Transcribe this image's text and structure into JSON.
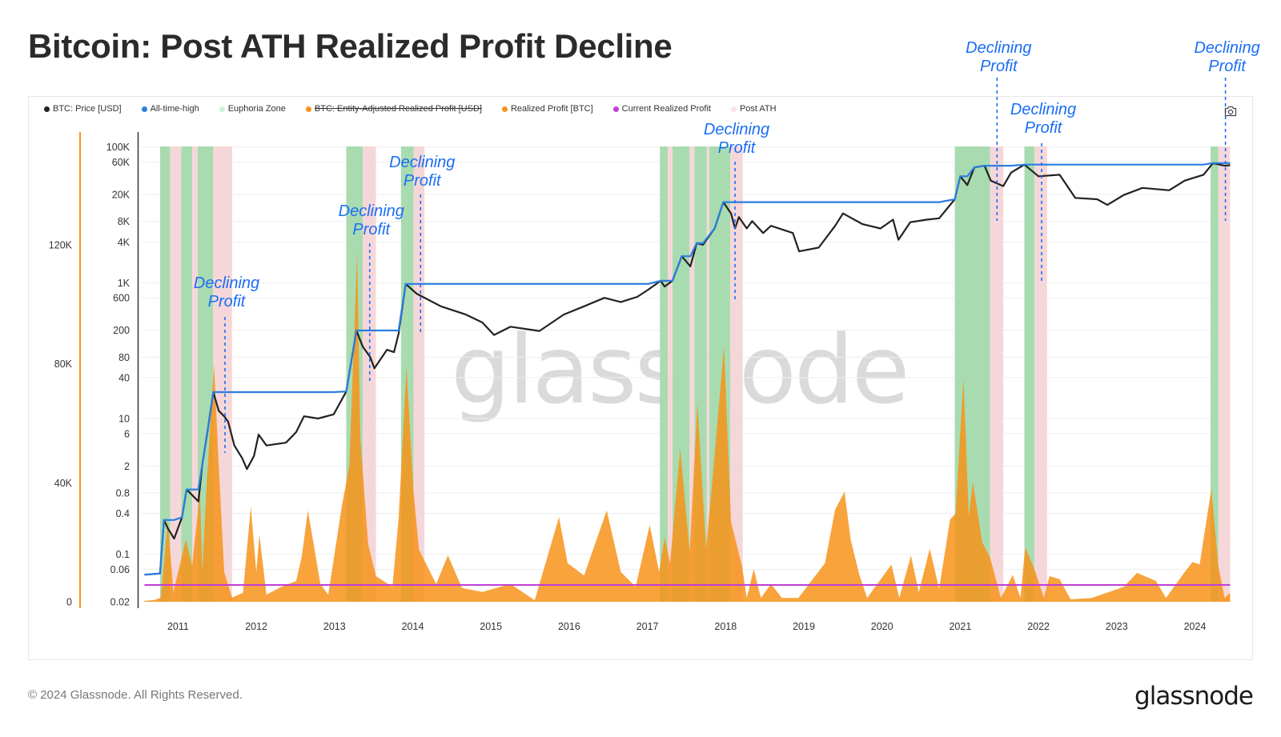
{
  "title": "Bitcoin: Post ATH Realized Profit Decline",
  "legend": [
    {
      "label": "BTC: Price [USD]",
      "color": "#222222",
      "strikethrough": false
    },
    {
      "label": "All-time-high",
      "color": "#2a7de1",
      "strikethrough": false
    },
    {
      "label": "Euphoria Zone",
      "color": "#c9f2d6",
      "strikethrough": false
    },
    {
      "label": "BTC: Entity-Adjusted Realized Profit [USD]",
      "color": "#f7931a",
      "strikethrough": true
    },
    {
      "label": "Realized Profit [BTC]",
      "color": "#f7931a",
      "strikethrough": false
    },
    {
      "label": "Current Realized Profit",
      "color": "#c23fd6",
      "strikethrough": false
    },
    {
      "label": "Post ATH",
      "color": "#fbe3e4",
      "strikethrough": false
    }
  ],
  "watermark": "glassnode",
  "footer": {
    "copyright": "© 2024 Glassnode. All Rights Reserved.",
    "logo": "glassnode"
  },
  "icons": {
    "screenshot": "camera-icon"
  },
  "chart_data": {
    "type": "line",
    "title": "Bitcoin: Post ATH Realized Profit Decline",
    "grid": true,
    "legend_position": "top-left",
    "x_range": [
      2010.57,
      2024.45
    ],
    "x_ticks": [
      "2011",
      "2012",
      "2013",
      "2014",
      "2015",
      "2016",
      "2017",
      "2018",
      "2019",
      "2020",
      "2021",
      "2022",
      "2023",
      "2024"
    ],
    "price_axis": {
      "scale": "log",
      "range": [
        0.02,
        100000
      ],
      "side": "left-inner",
      "ticks": [
        {
          "label": "100K",
          "value": 100000
        },
        {
          "label": "60K",
          "value": 60000
        },
        {
          "label": "20K",
          "value": 20000
        },
        {
          "label": "8K",
          "value": 8000
        },
        {
          "label": "4K",
          "value": 4000
        },
        {
          "label": "1K",
          "value": 1000
        },
        {
          "label": "600",
          "value": 600
        },
        {
          "label": "200",
          "value": 200
        },
        {
          "label": "80",
          "value": 80
        },
        {
          "label": "40",
          "value": 40
        },
        {
          "label": "10",
          "value": 10
        },
        {
          "label": "6",
          "value": 6
        },
        {
          "label": "2",
          "value": 2
        },
        {
          "label": "0.8",
          "value": 0.8
        },
        {
          "label": "0.4",
          "value": 0.4
        },
        {
          "label": "0.1",
          "value": 0.1
        },
        {
          "label": "0.06",
          "value": 0.06
        },
        {
          "label": "0.02",
          "value": 0.02
        }
      ]
    },
    "profit_axis": {
      "scale": "linear",
      "range": [
        0,
        153000
      ],
      "side": "left-outer",
      "ticks": [
        {
          "label": "0",
          "value": 0
        },
        {
          "label": "40K",
          "value": 40000
        },
        {
          "label": "80K",
          "value": 80000
        },
        {
          "label": "120K",
          "value": 120000
        }
      ]
    },
    "colors": {
      "price": "#222222",
      "ath": "#2a7de1",
      "euphoria": "#a9dbb1",
      "post_ath": "#f6d7d9",
      "profit": "#f7931a",
      "current_profit": "#c23fd6",
      "annotation": "#1a6ef5"
    },
    "series": [
      {
        "name": "BTC: Price [USD]",
        "points": [
          [
            2010.57,
            0.05
          ],
          [
            2010.77,
            0.052
          ],
          [
            2010.82,
            0.32
          ],
          [
            2010.87,
            0.24
          ],
          [
            2010.95,
            0.17
          ],
          [
            2011.05,
            0.35
          ],
          [
            2011.11,
            0.9
          ],
          [
            2011.26,
            0.6
          ],
          [
            2011.31,
            2.1
          ],
          [
            2011.38,
            6.8
          ],
          [
            2011.45,
            24.5
          ],
          [
            2011.52,
            13
          ],
          [
            2011.59,
            10.8
          ],
          [
            2011.64,
            9
          ],
          [
            2011.72,
            4
          ],
          [
            2011.82,
            2.6
          ],
          [
            2011.88,
            1.8
          ],
          [
            2011.97,
            2.8
          ],
          [
            2012.03,
            5.8
          ],
          [
            2012.13,
            4
          ],
          [
            2012.38,
            4.4
          ],
          [
            2012.51,
            6.3
          ],
          [
            2012.61,
            10.8
          ],
          [
            2012.79,
            10
          ],
          [
            2012.99,
            11.5
          ],
          [
            2013.15,
            25
          ],
          [
            2013.28,
            198
          ],
          [
            2013.36,
            115
          ],
          [
            2013.46,
            79
          ],
          [
            2013.51,
            55
          ],
          [
            2013.67,
            103
          ],
          [
            2013.76,
            95
          ],
          [
            2013.82,
            178
          ],
          [
            2013.91,
            960
          ],
          [
            2014.05,
            690
          ],
          [
            2014.36,
            450
          ],
          [
            2014.68,
            340
          ],
          [
            2014.89,
            260
          ],
          [
            2015.04,
            170
          ],
          [
            2015.25,
            225
          ],
          [
            2015.62,
            195
          ],
          [
            2015.93,
            340
          ],
          [
            2016.19,
            450
          ],
          [
            2016.45,
            600
          ],
          [
            2016.66,
            520
          ],
          [
            2016.87,
            620
          ],
          [
            2017.01,
            790
          ],
          [
            2017.17,
            1070
          ],
          [
            2017.22,
            880
          ],
          [
            2017.32,
            1070
          ],
          [
            2017.44,
            2460
          ],
          [
            2017.55,
            1740
          ],
          [
            2017.63,
            3830
          ],
          [
            2017.71,
            3640
          ],
          [
            2017.86,
            6300
          ],
          [
            2017.97,
            15400
          ],
          [
            2018.07,
            10500
          ],
          [
            2018.12,
            6300
          ],
          [
            2018.17,
            9300
          ],
          [
            2018.27,
            6300
          ],
          [
            2018.34,
            8100
          ],
          [
            2018.48,
            5400
          ],
          [
            2018.58,
            6900
          ],
          [
            2018.86,
            5400
          ],
          [
            2018.94,
            2900
          ],
          [
            2019.19,
            3300
          ],
          [
            2019.4,
            6900
          ],
          [
            2019.5,
            10500
          ],
          [
            2019.75,
            7300
          ],
          [
            2019.98,
            6300
          ],
          [
            2020.14,
            8500
          ],
          [
            2020.21,
            4300
          ],
          [
            2020.36,
            7800
          ],
          [
            2020.57,
            8500
          ],
          [
            2020.73,
            8900
          ],
          [
            2020.93,
            17000
          ],
          [
            2021.0,
            37000
          ],
          [
            2021.09,
            27500
          ],
          [
            2021.18,
            50000
          ],
          [
            2021.31,
            53000
          ],
          [
            2021.39,
            32000
          ],
          [
            2021.55,
            26500
          ],
          [
            2021.65,
            42000
          ],
          [
            2021.82,
            55000
          ],
          [
            2022.0,
            37000
          ],
          [
            2022.27,
            39000
          ],
          [
            2022.47,
            17800
          ],
          [
            2022.75,
            17000
          ],
          [
            2022.88,
            14000
          ],
          [
            2023.09,
            19600
          ],
          [
            2023.33,
            25000
          ],
          [
            2023.67,
            23000
          ],
          [
            2023.87,
            32000
          ],
          [
            2024.11,
            39000
          ],
          [
            2024.23,
            58000
          ],
          [
            2024.38,
            53000
          ],
          [
            2024.45,
            54000
          ]
        ]
      },
      {
        "name": "Realized Profit [BTC]",
        "points": [
          [
            2010.57,
            300
          ],
          [
            2010.7,
            600
          ],
          [
            2010.78,
            1400
          ],
          [
            2010.87,
            27400
          ],
          [
            2010.94,
            3200
          ],
          [
            2011.1,
            21000
          ],
          [
            2011.18,
            12000
          ],
          [
            2011.28,
            37000
          ],
          [
            2011.31,
            10000
          ],
          [
            2011.36,
            37000
          ],
          [
            2011.46,
            80000
          ],
          [
            2011.52,
            46000
          ],
          [
            2011.59,
            10000
          ],
          [
            2011.69,
            1400
          ],
          [
            2011.83,
            3000
          ],
          [
            2011.93,
            32000
          ],
          [
            2012.0,
            10000
          ],
          [
            2012.04,
            22600
          ],
          [
            2012.13,
            2400
          ],
          [
            2012.32,
            5000
          ],
          [
            2012.51,
            7000
          ],
          [
            2012.58,
            15000
          ],
          [
            2012.66,
            30700
          ],
          [
            2012.82,
            6000
          ],
          [
            2012.92,
            2400
          ],
          [
            2013.09,
            31500
          ],
          [
            2013.19,
            46000
          ],
          [
            2013.29,
            118000
          ],
          [
            2013.33,
            55000
          ],
          [
            2013.43,
            19400
          ],
          [
            2013.53,
            8600
          ],
          [
            2013.74,
            5000
          ],
          [
            2013.82,
            28000
          ],
          [
            2013.92,
            79000
          ],
          [
            2014.01,
            37000
          ],
          [
            2014.08,
            17500
          ],
          [
            2014.3,
            6000
          ],
          [
            2014.45,
            15600
          ],
          [
            2014.63,
            4600
          ],
          [
            2014.89,
            3300
          ],
          [
            2015.25,
            6000
          ],
          [
            2015.56,
            500
          ],
          [
            2015.87,
            28500
          ],
          [
            2015.98,
            13000
          ],
          [
            2016.19,
            8800
          ],
          [
            2016.48,
            30700
          ],
          [
            2016.66,
            10000
          ],
          [
            2016.85,
            5000
          ],
          [
            2017.03,
            25800
          ],
          [
            2017.15,
            10000
          ],
          [
            2017.22,
            21800
          ],
          [
            2017.29,
            13000
          ],
          [
            2017.42,
            51600
          ],
          [
            2017.54,
            17000
          ],
          [
            2017.64,
            66800
          ],
          [
            2017.75,
            17900
          ],
          [
            2017.83,
            40400
          ],
          [
            2017.98,
            86000
          ],
          [
            2018.07,
            26700
          ],
          [
            2018.21,
            12000
          ],
          [
            2018.27,
            1300
          ],
          [
            2018.36,
            11000
          ],
          [
            2018.45,
            1300
          ],
          [
            2018.58,
            6000
          ],
          [
            2018.72,
            1300
          ],
          [
            2018.93,
            1300
          ],
          [
            2019.27,
            13000
          ],
          [
            2019.4,
            31000
          ],
          [
            2019.52,
            37000
          ],
          [
            2019.6,
            20800
          ],
          [
            2019.71,
            9000
          ],
          [
            2019.81,
            1300
          ],
          [
            2020.12,
            12500
          ],
          [
            2020.22,
            1300
          ],
          [
            2020.37,
            15500
          ],
          [
            2020.47,
            3200
          ],
          [
            2020.61,
            17900
          ],
          [
            2020.73,
            4300
          ],
          [
            2020.87,
            27700
          ],
          [
            2020.94,
            29600
          ],
          [
            2021.04,
            75000
          ],
          [
            2021.11,
            28600
          ],
          [
            2021.16,
            40400
          ],
          [
            2021.28,
            20000
          ],
          [
            2021.38,
            15000
          ],
          [
            2021.52,
            1300
          ],
          [
            2021.67,
            9000
          ],
          [
            2021.77,
            1300
          ],
          [
            2021.83,
            18400
          ],
          [
            2021.96,
            10000
          ],
          [
            2022.07,
            1300
          ],
          [
            2022.14,
            8600
          ],
          [
            2022.27,
            7600
          ],
          [
            2022.41,
            800
          ],
          [
            2022.68,
            1300
          ],
          [
            2023.09,
            5000
          ],
          [
            2023.26,
            9700
          ],
          [
            2023.5,
            7000
          ],
          [
            2023.63,
            1300
          ],
          [
            2023.87,
            10000
          ],
          [
            2023.97,
            13400
          ],
          [
            2024.06,
            12500
          ],
          [
            2024.21,
            38000
          ],
          [
            2024.3,
            12000
          ],
          [
            2024.38,
            1300
          ],
          [
            2024.45,
            3000
          ]
        ]
      },
      {
        "name": "Current Realized Profit",
        "value": 5650
      }
    ],
    "all_time_high": "running maximum of BTC: Price [USD]",
    "euphoria_zones": [
      [
        2010.77,
        2010.9
      ],
      [
        2011.04,
        2011.18
      ],
      [
        2011.25,
        2011.45
      ],
      [
        2013.15,
        2013.36
      ],
      [
        2013.85,
        2014.01
      ],
      [
        2017.16,
        2017.26
      ],
      [
        2017.32,
        2017.54
      ],
      [
        2017.6,
        2017.76
      ],
      [
        2017.79,
        2018.06
      ],
      [
        2020.93,
        2021.38
      ],
      [
        2021.82,
        2021.95
      ],
      [
        2024.2,
        2024.3
      ]
    ],
    "post_ath_zones": [
      [
        2010.9,
        2011.04
      ],
      [
        2011.18,
        2011.25
      ],
      [
        2011.45,
        2011.69
      ],
      [
        2013.36,
        2013.53
      ],
      [
        2014.01,
        2014.15
      ],
      [
        2017.26,
        2017.32
      ],
      [
        2017.54,
        2017.6
      ],
      [
        2017.76,
        2017.79
      ],
      [
        2018.06,
        2018.22
      ],
      [
        2021.38,
        2021.55
      ],
      [
        2021.95,
        2022.11
      ],
      [
        2024.3,
        2024.45
      ]
    ],
    "annotations": [
      {
        "x": 2011.6,
        "lines": [
          "Declining",
          "Profit"
        ]
      },
      {
        "x": 2013.45,
        "lines": [
          "Declining",
          "Profit"
        ]
      },
      {
        "x": 2014.1,
        "lines": [
          "Declining",
          "Profit"
        ]
      },
      {
        "x": 2018.12,
        "lines": [
          "Declining",
          "Profit"
        ]
      },
      {
        "x": 2021.47,
        "lines": [
          "Declining",
          "Profit"
        ]
      },
      {
        "x": 2022.04,
        "lines": [
          "Declining",
          "Profit"
        ]
      },
      {
        "x": 2024.39,
        "lines": [
          "Declining",
          "Profit"
        ]
      }
    ]
  }
}
